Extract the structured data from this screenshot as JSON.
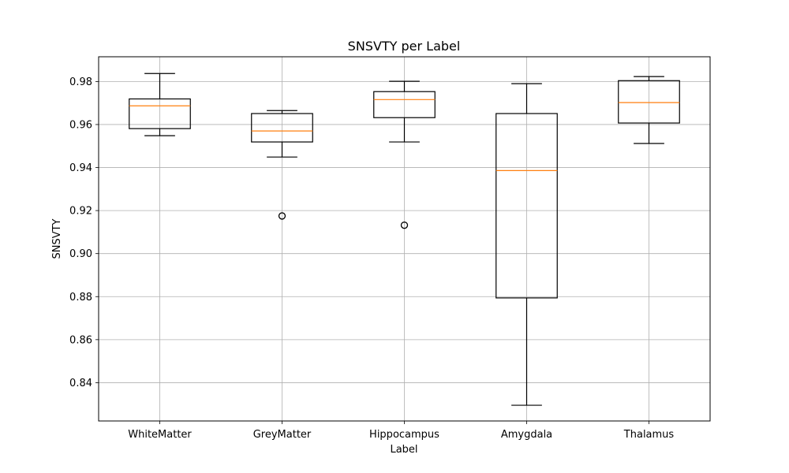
{
  "chart_data": {
    "type": "box",
    "title": "SNSVTY per Label",
    "xlabel": "Label",
    "ylabel": "SNSVTY",
    "ylim": [
      0.8222,
      0.9915
    ],
    "grid": true,
    "y_ticks": [
      "0.84",
      "0.86",
      "0.88",
      "0.90",
      "0.92",
      "0.94",
      "0.96",
      "0.98"
    ],
    "categories": [
      "WhiteMatter",
      "GreyMatter",
      "Hippocampus",
      "Amygdala",
      "Thalamus"
    ],
    "boxes": [
      {
        "label": "WhiteMatter",
        "whisker_low": 0.9548,
        "q1": 0.9581,
        "median": 0.9687,
        "q3": 0.9719,
        "whisker_high": 0.9837,
        "outliers": []
      },
      {
        "label": "GreyMatter",
        "whisker_low": 0.9449,
        "q1": 0.9519,
        "median": 0.957,
        "q3": 0.9651,
        "whisker_high": 0.9665,
        "outliers": [
          0.9175
        ]
      },
      {
        "label": "Hippocampus",
        "whisker_low": 0.9519,
        "q1": 0.9632,
        "median": 0.9716,
        "q3": 0.9753,
        "whisker_high": 0.9801,
        "outliers": [
          0.9132
        ]
      },
      {
        "label": "Amygdala",
        "whisker_low": 0.8295,
        "q1": 0.8794,
        "median": 0.9386,
        "q3": 0.9651,
        "whisker_high": 0.979,
        "outliers": []
      },
      {
        "label": "Thalamus",
        "whisker_low": 0.9512,
        "q1": 0.9607,
        "median": 0.9702,
        "q3": 0.9804,
        "whisker_high": 0.9823,
        "outliers": []
      }
    ],
    "colors": {
      "box": "#000000",
      "median": "#ff7f0e",
      "grid": "#b0b0b0"
    }
  }
}
